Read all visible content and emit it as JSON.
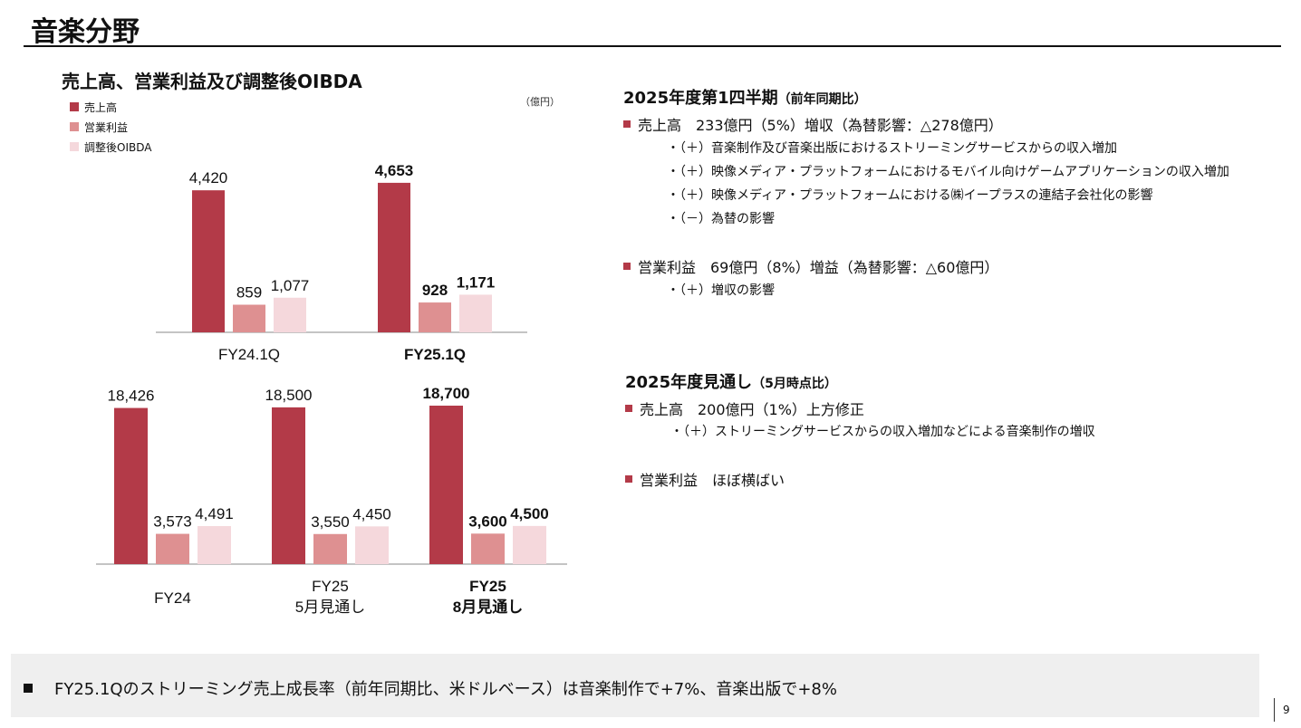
{
  "page": {
    "title": "音楽分野",
    "page_number": "9"
  },
  "chart_header": {
    "title": "売上高、営業利益及び調整後OIBDA",
    "unit": "（億円）",
    "legend": [
      {
        "label": "売上高",
        "color": "#b33a48"
      },
      {
        "label": "営業利益",
        "color": "#de9091"
      },
      {
        "label": "調整後OIBDA",
        "color": "#f5d8dc"
      }
    ]
  },
  "chart_data": [
    {
      "type": "bar",
      "title": "",
      "series_names": [
        "売上高",
        "営業利益",
        "調整後OIBDA"
      ],
      "groups": [
        {
          "label_lines": [
            "FY24.1Q"
          ],
          "bold": false,
          "values": [
            4420,
            859,
            1077
          ],
          "labels": [
            "4,420",
            "859",
            "1,077"
          ]
        },
        {
          "label_lines": [
            "FY25.1Q"
          ],
          "bold": true,
          "values": [
            4653,
            928,
            1171
          ],
          "labels": [
            "4,653",
            "928",
            "1,171"
          ]
        }
      ],
      "ylim": [
        0,
        5000
      ]
    },
    {
      "type": "bar",
      "title": "",
      "series_names": [
        "売上高",
        "営業利益",
        "調整後OIBDA"
      ],
      "groups": [
        {
          "label_lines": [
            "FY24"
          ],
          "bold": false,
          "values": [
            18426,
            3573,
            4491
          ],
          "labels": [
            "18,426",
            "3,573",
            "4,491"
          ]
        },
        {
          "label_lines": [
            "FY25",
            "5月見通し"
          ],
          "bold": false,
          "values": [
            18500,
            3550,
            4450
          ],
          "labels": [
            "18,500",
            "3,550",
            "4,450"
          ]
        },
        {
          "label_lines": [
            "FY25",
            "8月見通し"
          ],
          "bold": true,
          "values": [
            18700,
            3600,
            4500
          ],
          "labels": [
            "18,700",
            "3,600",
            "4,500"
          ]
        }
      ],
      "ylim": [
        0,
        20000
      ]
    }
  ],
  "section1": {
    "heading": "2025年度第1四半期",
    "heading_note": "（前年同期比）",
    "items": [
      {
        "text": "売上高　233億円（5%）増収（為替影響：△278億円）",
        "subs": [
          "・（＋）音楽制作及び音楽出版におけるストリーミングサービスからの収入増加",
          "・（＋）映像メディア・プラットフォームにおけるモバイル向けゲームアプリケーションの収入増加",
          "・（＋）映像メディア・プラットフォームにおける㈱イープラスの連結子会社化の影響",
          "・（－）為替の影響"
        ]
      },
      {
        "text": "営業利益　69億円（8%）増益（為替影響：△60億円）",
        "subs": [
          "・（＋）増収の影響"
        ]
      }
    ]
  },
  "section2": {
    "heading": "2025年度見通し",
    "heading_note": "（5月時点比）",
    "items": [
      {
        "text": "売上高　200億円（1%）上方修正",
        "subs": [
          "・（＋）ストリーミングサービスからの収入増加などによる音楽制作の増収"
        ]
      },
      {
        "text": "営業利益　ほぼ横ばい",
        "subs": []
      }
    ]
  },
  "footer": {
    "text": "FY25.1Qのストリーミング売上成長率（前年同期比、米ドルベース）は音楽制作で+7%、音楽出版で+8%"
  },
  "colors": {
    "accent": "#b33a48"
  }
}
